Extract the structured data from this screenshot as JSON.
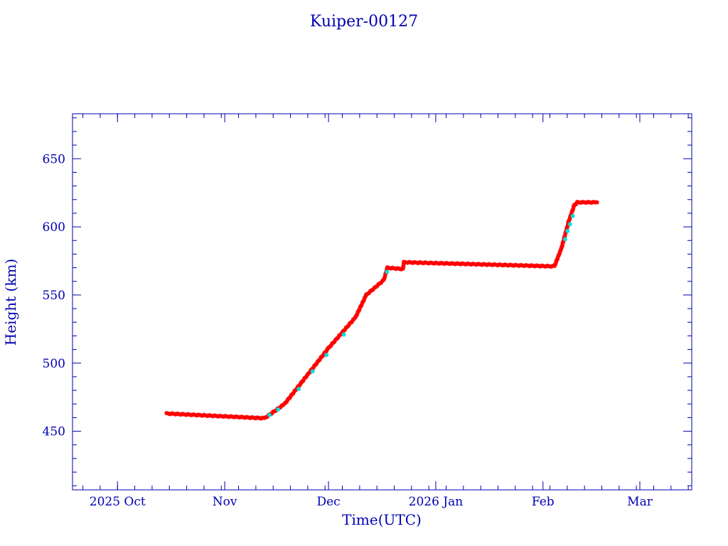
{
  "chart_data": {
    "type": "scatter",
    "title": "Kuiper-00127",
    "xlabel": "Time(UTC)",
    "ylabel": "Height (km)",
    "x_units": "days since 2025-10-01",
    "xlim": [
      -13,
      166
    ],
    "ylim": [
      407,
      683
    ],
    "yticks": [
      450,
      500,
      550,
      600,
      650
    ],
    "xticks": [
      {
        "label": "2025 Oct",
        "day": 0
      },
      {
        "label": "Nov",
        "day": 31
      },
      {
        "label": "Dec",
        "day": 61
      },
      {
        "label": "2026 Jan",
        "day": 92
      },
      {
        "label": "Feb",
        "day": 123
      },
      {
        "label": "Mar",
        "day": 151
      }
    ],
    "grid": false,
    "series": [
      {
        "name": "height",
        "color": "#ff0000",
        "marker": "asterisk",
        "points": [
          [
            14.2,
            463
          ],
          [
            42.5,
            459.5
          ],
          [
            48.3,
            470
          ],
          [
            61,
            511
          ],
          [
            68.8,
            533.6
          ],
          [
            71.9,
            550
          ],
          [
            77,
            561
          ],
          [
            78,
            570
          ],
          [
            82.5,
            569
          ],
          [
            82.8,
            574
          ],
          [
            126.3,
            571
          ],
          [
            128.3,
            584
          ],
          [
            130.4,
            603.6
          ],
          [
            132,
            615.6
          ],
          [
            132.9,
            618
          ],
          [
            138.6,
            618
          ]
        ]
      },
      {
        "name": "secondary",
        "color": "#00e0e0",
        "marker": "asterisk",
        "points": [
          [
            43.5,
            463
          ],
          [
            46,
            467
          ],
          [
            52,
            482
          ],
          [
            56,
            495
          ],
          [
            60,
            507
          ],
          [
            65,
            522
          ],
          [
            77.5,
            568
          ],
          [
            129,
            592
          ],
          [
            129.7,
            598
          ],
          [
            130.4,
            603
          ],
          [
            131.2,
            609
          ]
        ]
      }
    ]
  }
}
